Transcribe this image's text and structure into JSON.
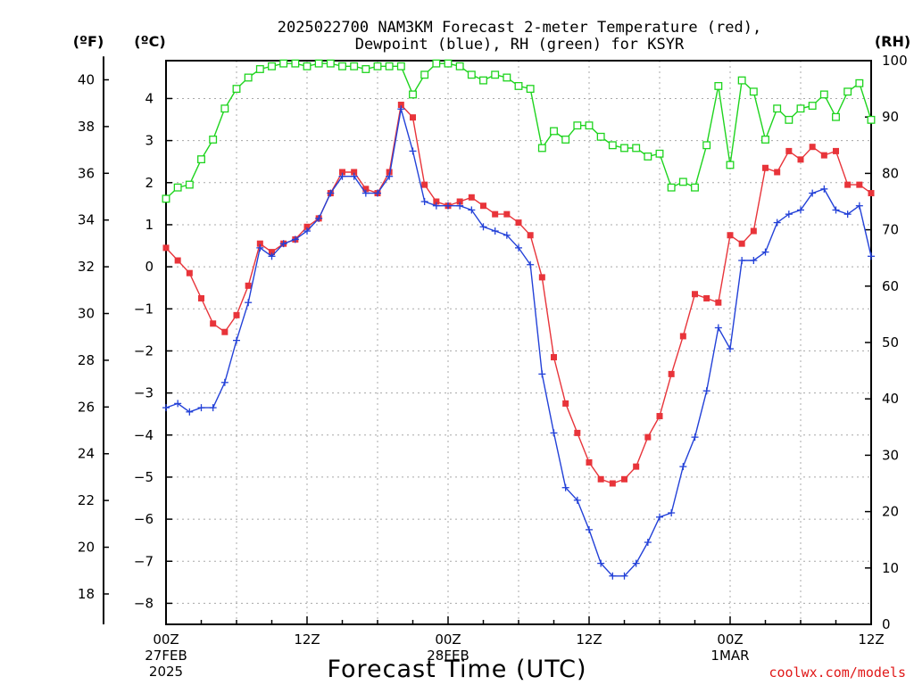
{
  "chart_data": {
    "type": "line",
    "title": [
      "2025022700 NAM3KM Forecast 2-meter Temperature (red),",
      "Dewpoint (blue), RH (green) for KSYR"
    ],
    "xlabel": "Forecast Time (UTC)",
    "credit": "coolwx.com/models",
    "units": {
      "fahrenheit": "(ºF)",
      "celsius": "(ºC)",
      "rh": "(RH)"
    },
    "x_ticks": [
      {
        "hour": 0,
        "lines": [
          "00Z",
          "27FEB",
          "2025"
        ]
      },
      {
        "hour": 12,
        "lines": [
          "12Z"
        ]
      },
      {
        "hour": 24,
        "lines": [
          "00Z",
          "28FEB"
        ]
      },
      {
        "hour": 36,
        "lines": [
          "12Z"
        ]
      },
      {
        "hour": 48,
        "lines": [
          "00Z",
          "1MAR"
        ]
      },
      {
        "hour": 60,
        "lines": [
          "12Z"
        ]
      }
    ],
    "xlim": [
      0,
      60
    ],
    "celsius_range": [
      -8.5,
      4.9
    ],
    "celsius_ticks": [
      -8,
      -7,
      -6,
      -5,
      -4,
      -3,
      -2,
      -1,
      0,
      1,
      2,
      3,
      4
    ],
    "fahrenheit_ticks": [
      18,
      20,
      22,
      24,
      26,
      28,
      30,
      32,
      34,
      36,
      38,
      40
    ],
    "rh_range": [
      0,
      100
    ],
    "rh_ticks": [
      0,
      10,
      20,
      30,
      40,
      50,
      60,
      70,
      80,
      90,
      100
    ],
    "grid": true,
    "series": [
      {
        "name": "Temperature (red)",
        "color": "#e8343a",
        "marker": "filled-square",
        "axis": "celsius",
        "hours": [
          0,
          1,
          2,
          3,
          4,
          5,
          6,
          7,
          8,
          9,
          10,
          11,
          12,
          13,
          14,
          15,
          16,
          17,
          18,
          19,
          20,
          21,
          22,
          23,
          24,
          25,
          26,
          27,
          28,
          29,
          30,
          31,
          32,
          33,
          34,
          35,
          36,
          37,
          38,
          39,
          40,
          41,
          42,
          43,
          44,
          45,
          46,
          47,
          48,
          49,
          50,
          51,
          52,
          53,
          54,
          55,
          56,
          57,
          58,
          59,
          60
        ],
        "values": [
          0.45,
          0.15,
          -0.15,
          -0.75,
          -1.35,
          -1.55,
          -1.15,
          -0.45,
          0.55,
          0.35,
          0.55,
          0.65,
          0.95,
          1.15,
          1.75,
          2.25,
          2.25,
          1.85,
          1.75,
          2.25,
          3.85,
          3.55,
          1.95,
          1.55,
          1.45,
          1.55,
          1.65,
          1.45,
          1.25,
          1.25,
          1.05,
          0.75,
          -0.25,
          -2.15,
          -3.25,
          -3.95,
          -4.65,
          -5.05,
          -5.15,
          -5.05,
          -4.75,
          -4.05,
          -3.55,
          -2.55,
          -1.65,
          -0.65,
          -0.75,
          -0.85,
          0.75,
          0.55,
          0.85,
          2.35,
          2.25,
          2.75,
          2.55,
          2.85,
          2.65,
          2.75,
          1.95,
          1.95,
          1.75
        ]
      },
      {
        "name": "Dewpoint (blue)",
        "color": "#2341d8",
        "marker": "plus",
        "axis": "celsius",
        "hours": [
          0,
          1,
          2,
          3,
          4,
          5,
          6,
          7,
          8,
          9,
          10,
          11,
          12,
          13,
          14,
          15,
          16,
          17,
          18,
          19,
          20,
          21,
          22,
          23,
          24,
          25,
          26,
          27,
          28,
          29,
          30,
          31,
          32,
          33,
          34,
          35,
          36,
          37,
          38,
          39,
          40,
          41,
          42,
          43,
          44,
          45,
          46,
          47,
          48,
          49,
          50,
          51,
          52,
          53,
          54,
          55,
          56,
          57,
          58,
          59,
          60
        ],
        "values": [
          -3.35,
          -3.25,
          -3.45,
          -3.35,
          -3.35,
          -2.75,
          -1.75,
          -0.85,
          0.45,
          0.25,
          0.55,
          0.65,
          0.85,
          1.15,
          1.75,
          2.15,
          2.15,
          1.75,
          1.75,
          2.15,
          3.75,
          2.75,
          1.55,
          1.45,
          1.45,
          1.45,
          1.35,
          0.95,
          0.85,
          0.75,
          0.45,
          0.05,
          -2.55,
          -3.95,
          -5.25,
          -5.55,
          -6.25,
          -7.05,
          -7.35,
          -7.35,
          -7.05,
          -6.55,
          -5.95,
          -5.85,
          -4.75,
          -4.05,
          -2.95,
          -1.45,
          -1.95,
          0.15,
          0.15,
          0.35,
          1.05,
          1.25,
          1.35,
          1.75,
          1.85,
          1.35,
          1.25,
          1.45,
          0.25
        ]
      },
      {
        "name": "RH (green)",
        "color": "#1ed41e",
        "marker": "open-square",
        "axis": "rh",
        "hours": [
          0,
          1,
          2,
          3,
          4,
          5,
          6,
          7,
          8,
          9,
          10,
          11,
          12,
          13,
          14,
          15,
          16,
          17,
          18,
          19,
          20,
          21,
          22,
          23,
          24,
          25,
          26,
          27,
          28,
          29,
          30,
          31,
          32,
          33,
          34,
          35,
          36,
          37,
          38,
          39,
          40,
          41,
          42,
          43,
          44,
          45,
          46,
          47,
          48,
          49,
          50,
          51,
          52,
          53,
          54,
          55,
          56,
          57,
          58,
          59,
          60
        ],
        "values": [
          75.5,
          77.5,
          78,
          82.5,
          86,
          91.5,
          95,
          97,
          98.5,
          99,
          99.5,
          99.5,
          99,
          99.5,
          99.5,
          99,
          99,
          98.5,
          99,
          99,
          99,
          94,
          97.5,
          99.5,
          99.5,
          99,
          97.5,
          96.5,
          97.5,
          97,
          95.5,
          95,
          84.5,
          87.5,
          86,
          88.5,
          88.5,
          86.5,
          85,
          84.5,
          84.5,
          83,
          83.5,
          77.5,
          78.5,
          77.5,
          85,
          95.5,
          81.5,
          96.5,
          94.5,
          86,
          91.5,
          89.5,
          91.5,
          92,
          94,
          90,
          94.5,
          96,
          89.5
        ]
      }
    ]
  }
}
